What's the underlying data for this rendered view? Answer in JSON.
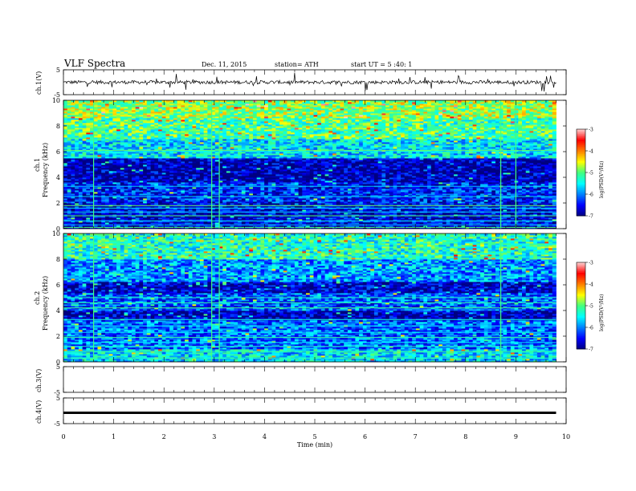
{
  "header": {
    "title": "VLF  Spectra",
    "date": "Dec. 11, 2015",
    "station": "station= ATH",
    "start": "start  UT =   5  :40: 1"
  },
  "chart_data": [
    {
      "type": "line",
      "name_label": "ch.1(V)",
      "ylim": [
        -5,
        5
      ],
      "yticks": [
        "5",
        "-5"
      ],
      "xlim": [
        0,
        10
      ],
      "description_values": "noisy waveform centered near 0 V"
    },
    {
      "type": "heatmap",
      "ylabel_channel": "ch.1",
      "ylabel": "Frequency  (kHz)",
      "ylim": [
        0,
        10
      ],
      "yticks": [
        "0",
        "2",
        "4",
        "6",
        "8",
        "10"
      ],
      "xlim": [
        0,
        10
      ],
      "colorbar": {
        "label": "log(PSD(V²/Hz)",
        "ticks": [
          "-3",
          "-4",
          "-5",
          "-6",
          "-7"
        ],
        "range": [
          -7,
          -3
        ]
      },
      "bands": [
        {
          "f_range": [
            0,
            2
          ],
          "level": -6.6
        },
        {
          "f_range": [
            2,
            3.6
          ],
          "level": -6.4
        },
        {
          "f_range": [
            3.6,
            5.5
          ],
          "level": -6.8
        },
        {
          "f_range": [
            5.5,
            7.0
          ],
          "level": -5.6
        },
        {
          "f_range": [
            7.0,
            8.6
          ],
          "level": -5.1
        },
        {
          "f_range": [
            8.6,
            10
          ],
          "level": -4.8
        }
      ],
      "tone_lines_khz": [
        0.1,
        0.3,
        0.6,
        1.0,
        1.3,
        1.6,
        1.8,
        2.5,
        3.3,
        6.0,
        6.1
      ],
      "spikes_min": [
        0.6,
        2.95,
        3.1,
        8.7,
        9.0
      ]
    },
    {
      "type": "heatmap",
      "ylabel_channel": "ch.2",
      "ylabel": "Frequency  (kHz)",
      "ylim": [
        0,
        10
      ],
      "yticks": [
        "0",
        "2",
        "4",
        "6",
        "8",
        "10"
      ],
      "xlim": [
        0,
        10
      ],
      "colorbar": {
        "label": "log(PSD(V²/Hz)",
        "ticks": [
          "-3",
          "-4",
          "-5",
          "-6",
          "-7"
        ],
        "range": [
          -7,
          -3
        ]
      },
      "bands": [
        {
          "f_range": [
            0,
            1.0
          ],
          "level": -5.6
        },
        {
          "f_range": [
            1.0,
            3.2
          ],
          "level": -6.1
        },
        {
          "f_range": [
            3.2,
            4.0
          ],
          "level": -6.8
        },
        {
          "f_range": [
            4.0,
            5.4
          ],
          "level": -6.2
        },
        {
          "f_range": [
            5.4,
            6.3
          ],
          "level": -6.7
        },
        {
          "f_range": [
            6.3,
            8.0
          ],
          "level": -5.9
        },
        {
          "f_range": [
            8.0,
            10
          ],
          "level": -5.3
        }
      ],
      "tone_lines_khz": [
        0.3,
        0.8,
        1.2,
        1.5,
        1.9,
        2.3,
        2.8,
        3.3,
        4.2,
        4.6,
        5.0
      ],
      "spikes_min": [
        0.6,
        2.95,
        3.1,
        8.7
      ]
    },
    {
      "type": "line",
      "name_label": "ch.3(V)",
      "ylim": [
        -5,
        5
      ],
      "yticks": [
        "5",
        "-5"
      ],
      "xlim": [
        0,
        10
      ],
      "description_values": "no signal"
    },
    {
      "type": "line",
      "name_label": "ch.4(V)",
      "ylim": [
        -5,
        5
      ],
      "yticks": [
        "5",
        "-5"
      ],
      "xlim": [
        0,
        10
      ],
      "xticks": [
        "0",
        "1",
        "2",
        "3",
        "4",
        "5",
        "6",
        "7",
        "8",
        "9",
        "10"
      ],
      "xlabel": "Time  (min)",
      "description_values": "flat trace slightly below 0 V"
    }
  ],
  "colors": {
    "colormap": [
      "#000080",
      "#0000ff",
      "#0080ff",
      "#00ffff",
      "#40ff80",
      "#ffff00",
      "#ff8000",
      "#ff0000",
      "#ffd0d0"
    ]
  }
}
